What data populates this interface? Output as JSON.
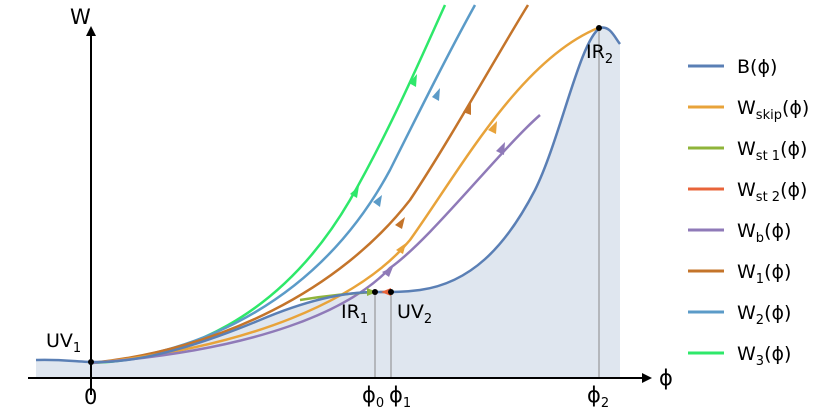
{
  "chart_data": {
    "type": "line",
    "axes": {
      "x_label": "ϕ",
      "y_label": "W"
    },
    "ticks": [
      {
        "main": "0",
        "sub": ""
      },
      {
        "main": "ϕ",
        "sub": "0"
      },
      {
        "main": "ϕ",
        "sub": "1"
      },
      {
        "main": "ϕ",
        "sub": "2"
      }
    ],
    "points": [
      {
        "main": "UV",
        "sub": "1"
      },
      {
        "main": "IR",
        "sub": "1"
      },
      {
        "main": "UV",
        "sub": "2"
      },
      {
        "main": "IR",
        "sub": "2"
      }
    ],
    "legend": [
      {
        "main": "B(ϕ)",
        "sub": "",
        "tail": "",
        "color": "#5a7fb5"
      },
      {
        "main": "W",
        "sub": "skip",
        "tail": "(ϕ)",
        "color": "#e8a33a"
      },
      {
        "main": "W",
        "sub": "st 1",
        "tail": "(ϕ)",
        "color": "#8fb43a"
      },
      {
        "main": "W",
        "sub": "st 2",
        "tail": "(ϕ)",
        "color": "#e8643a"
      },
      {
        "main": "W",
        "sub": "b",
        "tail": "(ϕ)",
        "color": "#8f7ab8"
      },
      {
        "main": "W",
        "sub": "1",
        "tail": "(ϕ)",
        "color": "#c4742a"
      },
      {
        "main": "W",
        "sub": "2",
        "tail": "(ϕ)",
        "color": "#5b9bc8"
      },
      {
        "main": "W",
        "sub": "3",
        "tail": "(ϕ)",
        "color": "#2ee86a"
      }
    ]
  }
}
